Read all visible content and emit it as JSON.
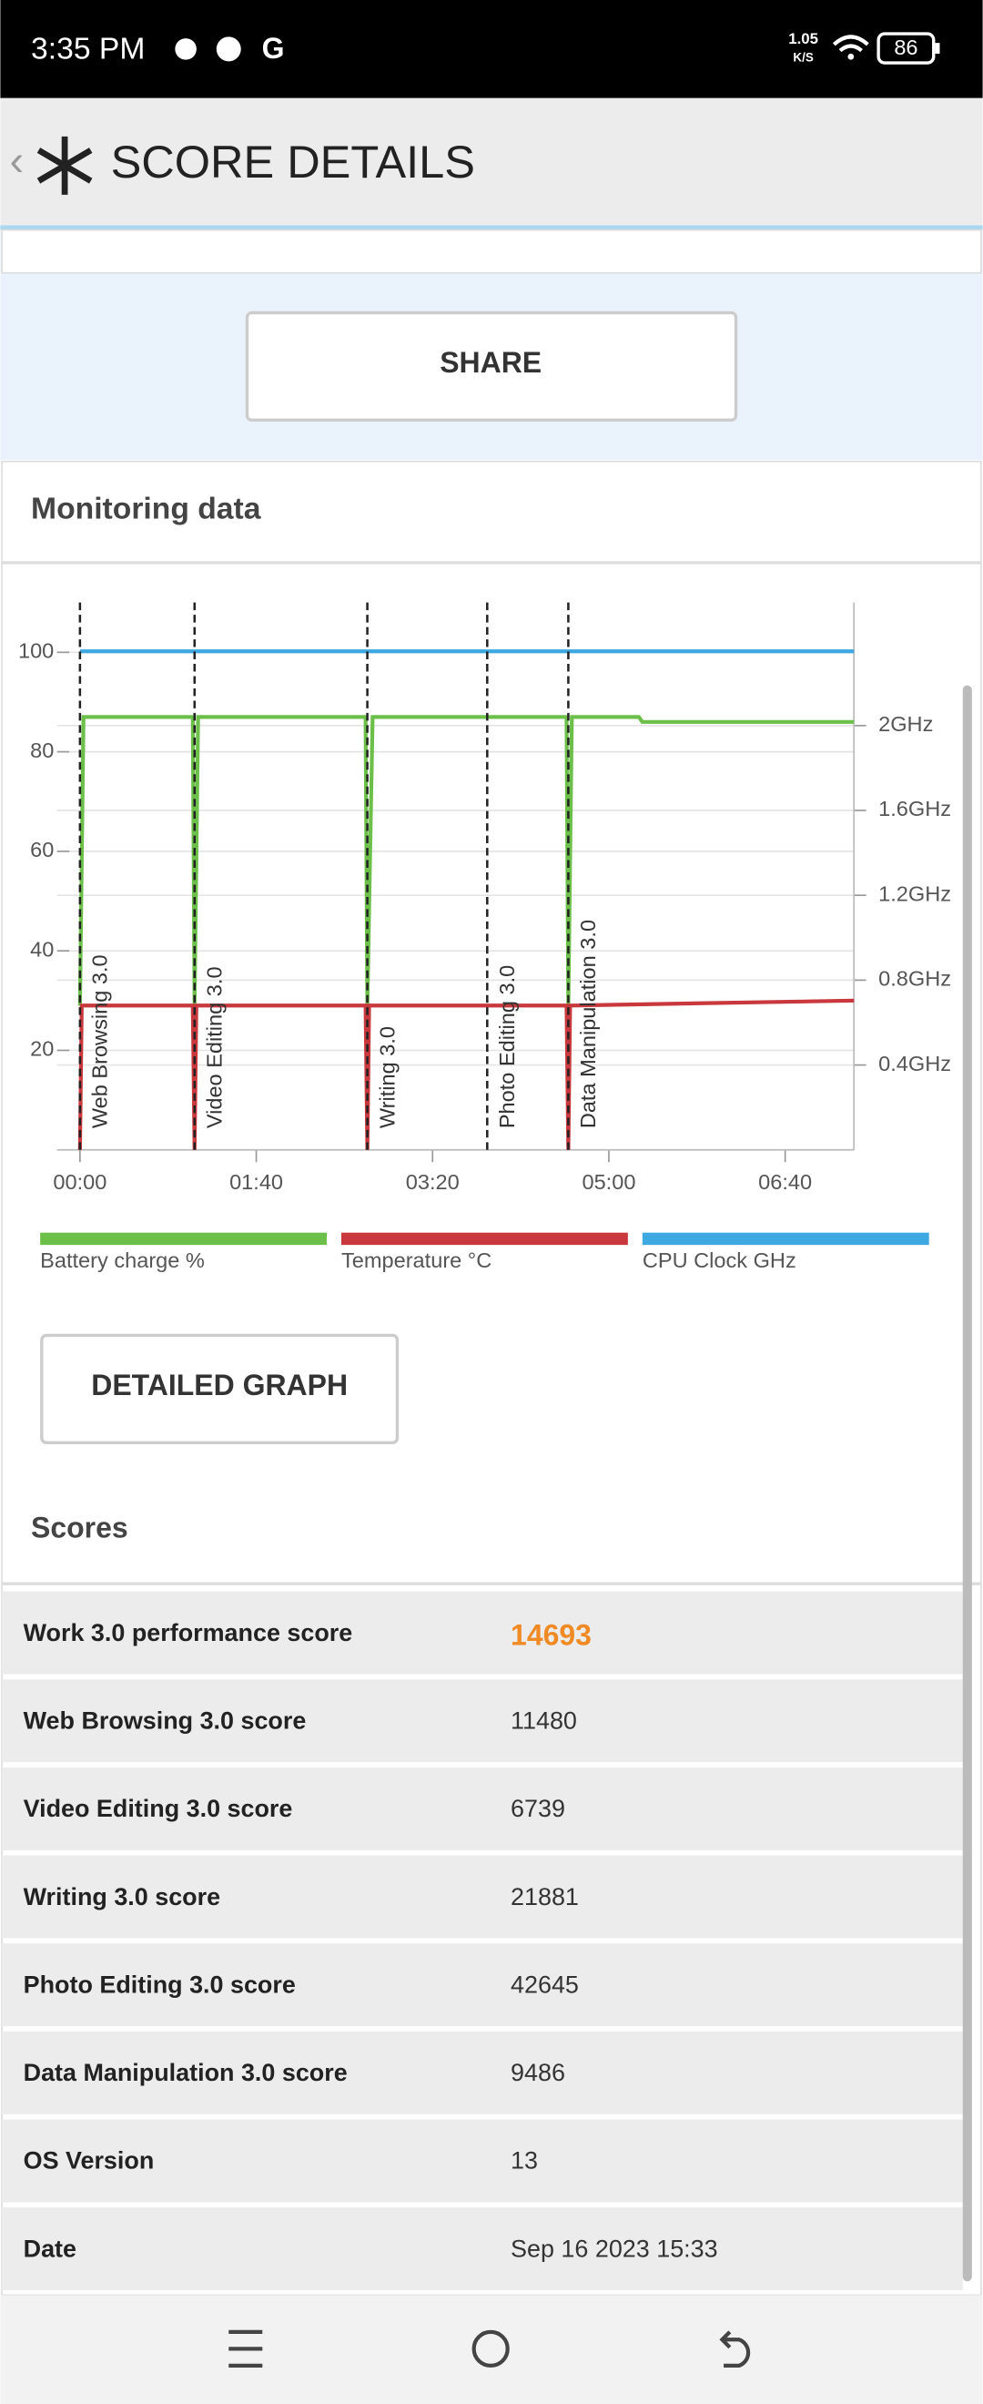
{
  "status_bar": {
    "time": "3:35 PM",
    "net_speed": "1.05",
    "net_unit": "K/S",
    "battery": "86"
  },
  "header": {
    "title": "SCORE DETAILS"
  },
  "share_button": "SHARE",
  "monitoring_title": "Monitoring data",
  "chart_data": {
    "type": "line",
    "xticks": [
      {
        "value": 0,
        "label": "00:00"
      },
      {
        "value": 100,
        "label": "01:40"
      },
      {
        "value": 200,
        "label": "03:20"
      },
      {
        "value": 300,
        "label": "05:00"
      },
      {
        "value": 400,
        "label": "06:40"
      }
    ],
    "xlim": [
      -13,
      439
    ],
    "ylim": [
      0,
      110
    ],
    "yticks": [
      20,
      40,
      60,
      80,
      100
    ],
    "y2lim": [
      0,
      2.58
    ],
    "y2ticks": [
      {
        "value": 0.4,
        "label": "0.4GHz"
      },
      {
        "value": 0.8,
        "label": "0.8GHz"
      },
      {
        "value": 1.2,
        "label": "1.2GHz"
      },
      {
        "value": 1.6,
        "label": "1.6GHz"
      },
      {
        "value": 2,
        "label": "2GHz"
      }
    ],
    "grid": true,
    "annotations": [
      {
        "x": 0,
        "text": "Web Browsing 3.0"
      },
      {
        "x": 65,
        "text": "Video Editing 3.0"
      },
      {
        "x": 163,
        "text": "Writing 3.0"
      },
      {
        "x": 231,
        "text": "Photo Editing 3.0"
      },
      {
        "x": 277,
        "text": "Data Manipulation 3.0"
      }
    ],
    "series": [
      {
        "name": "Battery charge %",
        "color": "#6cc04a",
        "x": [
          0,
          2,
          64,
          65,
          67,
          162,
          163,
          166,
          276,
          277,
          279,
          317,
          319,
          439
        ],
        "values": [
          29,
          87,
          87,
          29,
          87,
          87,
          29,
          87,
          87,
          29,
          87,
          87,
          86,
          86
        ]
      },
      {
        "name": "Temperature °C",
        "color": "#c8383c",
        "x": [
          0,
          1,
          64,
          65,
          66,
          162,
          163,
          164,
          276,
          277,
          278,
          439
        ],
        "values": [
          0,
          29,
          29,
          0,
          29,
          29,
          0,
          29,
          29,
          0,
          29,
          30
        ]
      },
      {
        "name": "CPU Clock GHz",
        "color": "#3ea8e0",
        "axis": "y2",
        "x": [
          0,
          439
        ],
        "values": [
          2.35,
          2.35
        ]
      }
    ]
  },
  "detailed_graph_button": "DETAILED GRAPH",
  "scores": {
    "title": "Scores",
    "rows": [
      [
        "Work 3.0 performance score",
        "14693"
      ],
      [
        "Web Browsing 3.0 score",
        "11480"
      ],
      [
        "Video Editing 3.0 score",
        "6739"
      ],
      [
        "Writing 3.0 score",
        "21881"
      ],
      [
        "Photo Editing 3.0 score",
        "42645"
      ],
      [
        "Data Manipulation 3.0 score",
        "9486"
      ],
      [
        "OS Version",
        "13"
      ],
      [
        "Date",
        "Sep 16 2023 15:33"
      ]
    ]
  }
}
